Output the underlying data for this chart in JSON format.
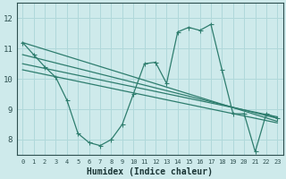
{
  "xlabel": "Humidex (Indice chaleur)",
  "bg_color": "#ceeaeb",
  "grid_color": "#b0d8da",
  "line_color": "#2e7d6e",
  "xlim": [
    -0.5,
    23.5
  ],
  "ylim": [
    7.5,
    12.5
  ],
  "yticks": [
    8,
    9,
    10,
    11,
    12
  ],
  "xticks": [
    0,
    1,
    2,
    3,
    4,
    5,
    6,
    7,
    8,
    9,
    10,
    11,
    12,
    13,
    14,
    15,
    16,
    17,
    18,
    19,
    20,
    21,
    22,
    23
  ],
  "series1_x": [
    0,
    1,
    2,
    3,
    4,
    5,
    6,
    7,
    8,
    9,
    10,
    11,
    12,
    13,
    14,
    15,
    16,
    17,
    18,
    19,
    20,
    21,
    22,
    23
  ],
  "series1_y": [
    11.2,
    10.8,
    10.4,
    10.05,
    9.3,
    8.2,
    7.9,
    7.8,
    8.0,
    8.5,
    9.5,
    10.5,
    10.55,
    9.85,
    11.55,
    11.7,
    11.6,
    11.8,
    10.3,
    8.85,
    8.85,
    7.6,
    8.85,
    8.7
  ],
  "series2_x": [
    0,
    23
  ],
  "series2_y": [
    11.2,
    8.6
  ],
  "series3_x": [
    0,
    23
  ],
  "series3_y": [
    10.8,
    8.7
  ],
  "series4_x": [
    0,
    23
  ],
  "series4_y": [
    10.5,
    8.75
  ],
  "series5_x": [
    0,
    23
  ],
  "series5_y": [
    10.3,
    8.55
  ]
}
